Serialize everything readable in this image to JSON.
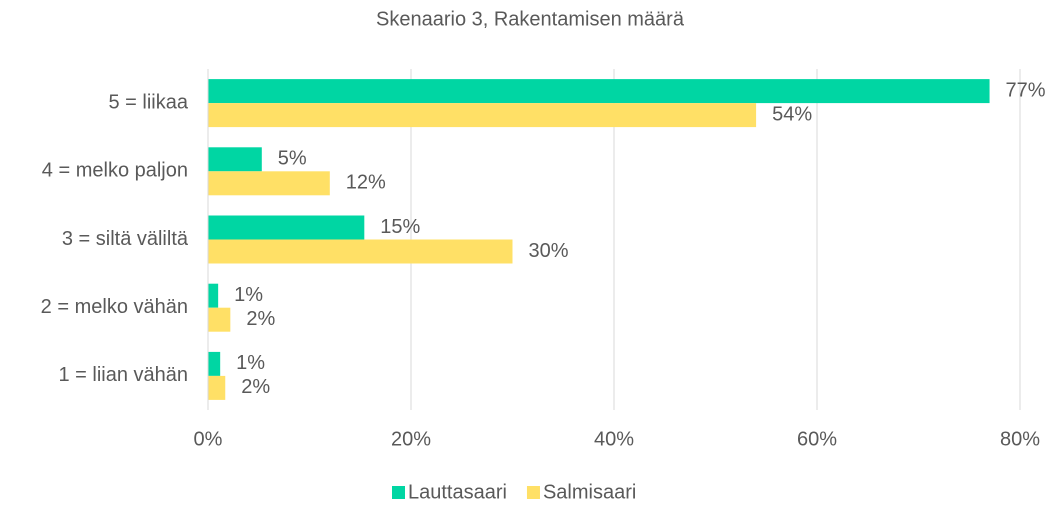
{
  "chart_data": {
    "type": "hbar",
    "title": "Skenaario 3, Rakentamisen määrä",
    "categories": [
      "5 = liikaa",
      "4 = melko paljon",
      "3 = siltä väliltä",
      "2 = melko vähän",
      "1 = liian vähän"
    ],
    "series": [
      {
        "name": "Lauttasaari",
        "color": "#00d6a3",
        "values": [
          77,
          5.3,
          15.4,
          1,
          1.2
        ],
        "value_labels": [
          "77%",
          "5%",
          "15%",
          "1%",
          "1%"
        ]
      },
      {
        "name": "Salmisaari",
        "color": "#ffe066",
        "values": [
          54,
          12,
          30,
          2.2,
          1.7
        ],
        "value_labels": [
          "54%",
          "12%",
          "30%",
          "2%",
          "2%"
        ]
      }
    ],
    "xlim": [
      0,
      80
    ],
    "xticks": [
      {
        "value": 0,
        "label": "0%"
      },
      {
        "value": 20,
        "label": "20%"
      },
      {
        "value": 40,
        "label": "40%"
      },
      {
        "value": 60,
        "label": "60%"
      },
      {
        "value": 80,
        "label": "80%"
      }
    ],
    "grid": true,
    "legend": "bottom"
  }
}
